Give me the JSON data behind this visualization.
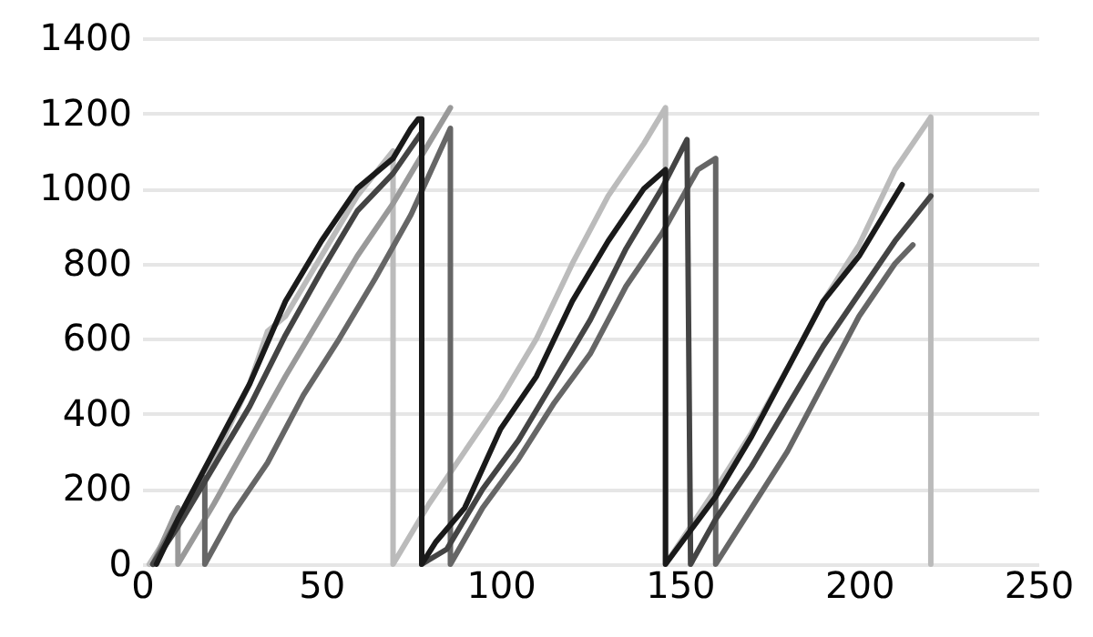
{
  "chart_data": {
    "type": "line",
    "xlim": [
      0,
      250
    ],
    "xticks": [
      0,
      50,
      100,
      150,
      200,
      250
    ],
    "ylim": [
      0,
      1400
    ],
    "yticks": [
      0,
      200,
      400,
      600,
      800,
      1000,
      1200,
      1400
    ],
    "grid": "y",
    "marker": "none",
    "line_style": "solid",
    "series": [
      {
        "color": "#bbbbbb",
        "x": [
          2,
          10,
          20,
          30,
          35,
          40,
          50,
          60,
          70,
          70,
          80,
          90,
          100,
          110,
          120,
          130,
          140,
          146,
          146,
          160,
          170,
          180,
          190,
          200,
          210,
          220,
          220
        ],
        "values": [
          0,
          120,
          280,
          480,
          620,
          660,
          820,
          980,
          1100,
          0,
          160,
          300,
          440,
          600,
          800,
          980,
          1120,
          1215,
          0,
          200,
          350,
          520,
          700,
          850,
          1050,
          1190,
          0
        ]
      },
      {
        "color": "#999999",
        "x": [
          3,
          10,
          10,
          20,
          30,
          40,
          50,
          60,
          70,
          80,
          86
        ],
        "values": [
          0,
          150,
          0,
          160,
          330,
          500,
          660,
          820,
          960,
          1120,
          1215
        ]
      },
      {
        "color": "#666666",
        "x": [
          3,
          10,
          17.5,
          17.5,
          25,
          35,
          45,
          55,
          65,
          75,
          86,
          86,
          95,
          105,
          115,
          125,
          135,
          145,
          155,
          160,
          160,
          170,
          180,
          190,
          200,
          210,
          215
        ],
        "values": [
          0,
          120,
          230,
          0,
          130,
          270,
          450,
          600,
          760,
          930,
          1160,
          0,
          150,
          280,
          430,
          560,
          740,
          880,
          1050,
          1080,
          0,
          150,
          300,
          480,
          660,
          800,
          850
        ]
      },
      {
        "color": "#444444",
        "x": [
          3,
          10,
          20,
          30,
          40,
          50,
          60,
          70,
          78,
          78,
          85,
          95,
          105,
          115,
          125,
          135,
          145,
          152,
          153,
          160,
          170,
          180,
          190,
          200,
          210,
          220
        ],
        "values": [
          0,
          100,
          260,
          420,
          610,
          780,
          940,
          1040,
          1150,
          0,
          40,
          200,
          330,
          490,
          650,
          840,
          1000,
          1130,
          0,
          120,
          260,
          420,
          580,
          720,
          860,
          980
        ]
      },
      {
        "color": "#1a1a1a",
        "x": [
          4,
          10,
          20,
          30,
          40,
          50,
          60,
          70,
          75,
          77,
          78,
          78,
          82,
          90,
          100,
          110,
          120,
          130,
          140,
          146,
          146,
          160,
          170,
          180,
          190,
          200,
          212
        ],
        "values": [
          0,
          120,
          300,
          480,
          700,
          860,
          1000,
          1080,
          1160,
          1185,
          1185,
          0,
          60,
          150,
          360,
          500,
          700,
          860,
          1000,
          1050,
          0,
          180,
          340,
          520,
          700,
          820,
          1010
        ]
      }
    ]
  }
}
